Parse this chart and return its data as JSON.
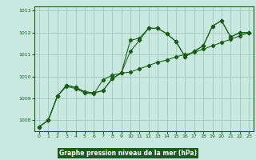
{
  "background_color": "#c8e8e0",
  "plot_bg": "#c8e8e0",
  "line_color": "#1a5c1a",
  "grid_color": "#a0c8b8",
  "xlabel": "Graphe pression niveau de la mer (hPa)",
  "xlabel_bg": "#1a5c1a",
  "xlabel_fg": "#ffffff",
  "xlim": [
    -0.5,
    23.5
  ],
  "ylim": [
    1007.5,
    1013.2
  ],
  "yticks": [
    1008,
    1009,
    1010,
    1011,
    1012,
    1013
  ],
  "xticks": [
    0,
    1,
    2,
    3,
    4,
    5,
    6,
    7,
    8,
    9,
    10,
    11,
    12,
    13,
    14,
    15,
    16,
    17,
    18,
    19,
    20,
    21,
    22,
    23
  ],
  "series_wavy1": [
    1007.7,
    1008.0,
    1009.1,
    1009.6,
    1009.5,
    1009.3,
    1009.25,
    1009.35,
    1009.9,
    1010.15,
    1011.65,
    1011.75,
    1012.2,
    1012.2,
    1011.95,
    1011.6,
    1010.9,
    1011.15,
    1011.4,
    1012.3,
    1012.55,
    1011.8,
    1012.0,
    1012.0
  ],
  "series_wavy2": [
    1007.7,
    1008.0,
    1009.1,
    1009.6,
    1009.5,
    1009.3,
    1009.25,
    1009.35,
    1009.9,
    1010.15,
    1011.15,
    1011.65,
    1012.2,
    1012.2,
    1011.95,
    1011.6,
    1010.9,
    1011.15,
    1011.4,
    1012.3,
    1012.55,
    1011.8,
    1012.0,
    1012.0
  ],
  "series_linear": [
    1007.7,
    1008.0,
    1009.1,
    1009.55,
    1009.45,
    1009.25,
    1009.2,
    1009.85,
    1010.05,
    1010.15,
    1010.2,
    1010.35,
    1010.5,
    1010.65,
    1010.75,
    1010.9,
    1011.0,
    1011.1,
    1011.25,
    1011.4,
    1011.55,
    1011.7,
    1011.85,
    1012.0
  ]
}
